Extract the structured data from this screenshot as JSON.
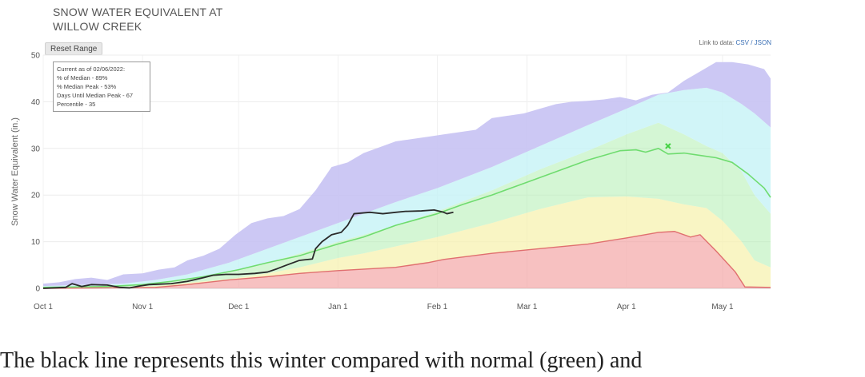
{
  "title": {
    "line1": "SNOW WATER EQUIVALENT AT",
    "line2": "WILLOW CREEK"
  },
  "reset_label": "Reset Range",
  "data_link": {
    "prefix": "Link to data:",
    "csv": "CSV",
    "sep": "/",
    "json": "JSON"
  },
  "info_box": {
    "line1": "Current as of 02/06/2022:",
    "line2": "% of Median - 89%",
    "line3": "% Median Peak - 53%",
    "line4": "Days Until Median Peak - 67",
    "line5": "Percentile - 35"
  },
  "caption": "The black line represents this winter compared with normal (green) and",
  "chart_data": {
    "type": "area",
    "ylabel": "Snow Water Equivalent (in.)",
    "ylim": [
      0,
      50
    ],
    "yticks": [
      0,
      10,
      20,
      30,
      40,
      50
    ],
    "xlim": [
      0,
      227
    ],
    "xticks": [
      {
        "day": 0,
        "label": "Oct 1"
      },
      {
        "day": 31,
        "label": "Nov 1"
      },
      {
        "day": 61,
        "label": "Dec 1"
      },
      {
        "day": 92,
        "label": "Jan 1"
      },
      {
        "day": 123,
        "label": "Feb 1"
      },
      {
        "day": 151,
        "label": "Mar 1"
      },
      {
        "day": 182,
        "label": "Apr 1"
      },
      {
        "day": 212,
        "label": "May 1"
      }
    ],
    "grid": true,
    "bands": [
      {
        "color": "#f2a0a0",
        "opacity": 0.65,
        "lower": [
          [
            0,
            0
          ],
          [
            227,
            0
          ]
        ],
        "upper": [
          [
            0,
            0
          ],
          [
            35,
            0.2
          ],
          [
            45,
            0.8
          ],
          [
            58,
            1.8
          ],
          [
            70,
            2.5
          ],
          [
            80,
            3.2
          ],
          [
            92,
            3.8
          ],
          [
            110,
            4.5
          ],
          [
            120,
            5.5
          ],
          [
            125,
            6.2
          ],
          [
            140,
            7.5
          ],
          [
            155,
            8.5
          ],
          [
            170,
            9.5
          ],
          [
            182,
            10.8
          ],
          [
            192,
            12.0
          ],
          [
            197,
            12.2
          ],
          [
            202,
            11.0
          ],
          [
            205,
            11.5
          ],
          [
            210,
            8.0
          ],
          [
            216,
            3.5
          ],
          [
            219,
            0.3
          ],
          [
            227,
            0.2
          ]
        ]
      },
      {
        "color": "#f7f2b0",
        "opacity": 0.75,
        "lower": null,
        "upper": [
          [
            0,
            0.1
          ],
          [
            20,
            0.2
          ],
          [
            35,
            0.5
          ],
          [
            45,
            1.2
          ],
          [
            58,
            2.0
          ],
          [
            70,
            3.2
          ],
          [
            80,
            4.5
          ],
          [
            92,
            6.5
          ],
          [
            100,
            7.5
          ],
          [
            110,
            9.0
          ],
          [
            123,
            11.0
          ],
          [
            140,
            14.0
          ],
          [
            155,
            17.0
          ],
          [
            170,
            19.5
          ],
          [
            182,
            19.7
          ],
          [
            192,
            19.2
          ],
          [
            200,
            18.0
          ],
          [
            207,
            17.2
          ],
          [
            212,
            14.5
          ],
          [
            218,
            10.0
          ],
          [
            222,
            6.0
          ],
          [
            227,
            4.5
          ]
        ]
      },
      {
        "color": "#b8f0b8",
        "opacity": 0.6,
        "lower": null,
        "upper": [
          [
            0,
            0.3
          ],
          [
            25,
            0.6
          ],
          [
            35,
            1.0
          ],
          [
            45,
            2.0
          ],
          [
            58,
            3.5
          ],
          [
            70,
            5.5
          ],
          [
            80,
            7.5
          ],
          [
            92,
            10.0
          ],
          [
            100,
            11.5
          ],
          [
            110,
            13.5
          ],
          [
            123,
            16.5
          ],
          [
            140,
            21.0
          ],
          [
            155,
            25.5
          ],
          [
            170,
            29.5
          ],
          [
            182,
            33.0
          ],
          [
            192,
            35.5
          ],
          [
            200,
            33.0
          ],
          [
            207,
            30.5
          ],
          [
            212,
            29.0
          ],
          [
            218,
            25.0
          ],
          [
            222,
            20.0
          ],
          [
            227,
            16.0
          ]
        ]
      },
      {
        "color": "#c6f3f6",
        "opacity": 0.8,
        "lower": null,
        "upper": [
          [
            0,
            0.5
          ],
          [
            25,
            1.0
          ],
          [
            35,
            1.8
          ],
          [
            45,
            3.0
          ],
          [
            58,
            5.5
          ],
          [
            70,
            8.5
          ],
          [
            80,
            11.0
          ],
          [
            92,
            14.0
          ],
          [
            100,
            16.0
          ],
          [
            110,
            18.5
          ],
          [
            123,
            21.5
          ],
          [
            140,
            26.0
          ],
          [
            155,
            30.5
          ],
          [
            170,
            35.0
          ],
          [
            182,
            38.5
          ],
          [
            192,
            41.5
          ],
          [
            200,
            42.5
          ],
          [
            207,
            43.0
          ],
          [
            212,
            42.0
          ],
          [
            218,
            39.5
          ],
          [
            222,
            37.5
          ],
          [
            227,
            34.5
          ]
        ]
      },
      {
        "color": "#c7c2f3",
        "opacity": 0.9,
        "lower": null,
        "upper": [
          [
            0,
            1.0
          ],
          [
            5,
            1.3
          ],
          [
            10,
            2.0
          ],
          [
            15,
            2.3
          ],
          [
            20,
            1.8
          ],
          [
            25,
            3.0
          ],
          [
            31,
            3.2
          ],
          [
            36,
            4.0
          ],
          [
            41,
            4.5
          ],
          [
            45,
            6.0
          ],
          [
            50,
            7.0
          ],
          [
            55,
            8.5
          ],
          [
            60,
            11.5
          ],
          [
            65,
            14.0
          ],
          [
            70,
            15.0
          ],
          [
            75,
            15.5
          ],
          [
            80,
            17.0
          ],
          [
            85,
            21.0
          ],
          [
            90,
            26.0
          ],
          [
            95,
            27.0
          ],
          [
            100,
            29.0
          ],
          [
            110,
            31.5
          ],
          [
            115,
            32.0
          ],
          [
            120,
            32.5
          ],
          [
            125,
            33.0
          ],
          [
            130,
            33.5
          ],
          [
            135,
            34.0
          ],
          [
            140,
            36.5
          ],
          [
            145,
            37.0
          ],
          [
            150,
            37.5
          ],
          [
            155,
            38.5
          ],
          [
            160,
            39.5
          ],
          [
            165,
            40.0
          ],
          [
            170,
            40.2
          ],
          [
            175,
            40.5
          ],
          [
            180,
            41.0
          ],
          [
            185,
            40.3
          ],
          [
            190,
            41.5
          ],
          [
            195,
            42.0
          ],
          [
            200,
            44.5
          ],
          [
            205,
            46.5
          ],
          [
            210,
            48.5
          ],
          [
            215,
            48.5
          ],
          [
            220,
            48.0
          ],
          [
            225,
            47.0
          ],
          [
            227,
            45.0
          ]
        ]
      }
    ],
    "series": [
      {
        "name": "",
        "color": "#6fdc6f",
        "width": 1.6,
        "points": [
          [
            0,
            0.2
          ],
          [
            20,
            0.4
          ],
          [
            31,
            0.8
          ],
          [
            40,
            1.5
          ],
          [
            50,
            2.5
          ],
          [
            61,
            4.0
          ],
          [
            70,
            5.5
          ],
          [
            80,
            7.0
          ],
          [
            92,
            9.5
          ],
          [
            100,
            11.0
          ],
          [
            110,
            13.5
          ],
          [
            123,
            16.0
          ],
          [
            131,
            18.0
          ],
          [
            140,
            20.0
          ],
          [
            150,
            22.5
          ],
          [
            160,
            25.0
          ],
          [
            170,
            27.5
          ],
          [
            180,
            29.5
          ],
          [
            185,
            29.7
          ],
          [
            188,
            29.2
          ],
          [
            192,
            30.0
          ],
          [
            195,
            28.8
          ],
          [
            200,
            29.0
          ],
          [
            205,
            28.5
          ],
          [
            210,
            28.0
          ],
          [
            215,
            27.0
          ],
          [
            220,
            24.5
          ],
          [
            225,
            21.5
          ],
          [
            227,
            19.5
          ]
        ]
      },
      {
        "name": "",
        "color": "#2a2a2a",
        "width": 1.8,
        "points": [
          [
            0,
            0
          ],
          [
            7,
            0.2
          ],
          [
            9,
            1.0
          ],
          [
            12,
            0.4
          ],
          [
            15,
            0.8
          ],
          [
            20,
            0.7
          ],
          [
            24,
            0.2
          ],
          [
            27,
            0.1
          ],
          [
            30,
            0.5
          ],
          [
            33,
            0.8
          ],
          [
            40,
            1.0
          ],
          [
            45,
            1.5
          ],
          [
            50,
            2.3
          ],
          [
            53,
            2.8
          ],
          [
            57,
            3.0
          ],
          [
            61,
            3.0
          ],
          [
            66,
            3.2
          ],
          [
            70,
            3.5
          ],
          [
            73,
            4.2
          ],
          [
            76,
            5.0
          ],
          [
            80,
            6.0
          ],
          [
            84,
            6.3
          ],
          [
            85,
            8.5
          ],
          [
            87,
            10.0
          ],
          [
            90,
            11.5
          ],
          [
            93,
            12.0
          ],
          [
            95,
            13.5
          ],
          [
            97,
            16.0
          ],
          [
            102,
            16.3
          ],
          [
            106,
            16.0
          ],
          [
            110,
            16.3
          ],
          [
            113,
            16.5
          ],
          [
            118,
            16.6
          ],
          [
            122,
            16.8
          ],
          [
            125,
            16.3
          ],
          [
            126,
            16.0
          ],
          [
            128,
            16.3
          ]
        ]
      }
    ],
    "markers": [
      {
        "day": 195,
        "value": 30.5,
        "color": "#45d245",
        "symbol": "x"
      }
    ]
  }
}
